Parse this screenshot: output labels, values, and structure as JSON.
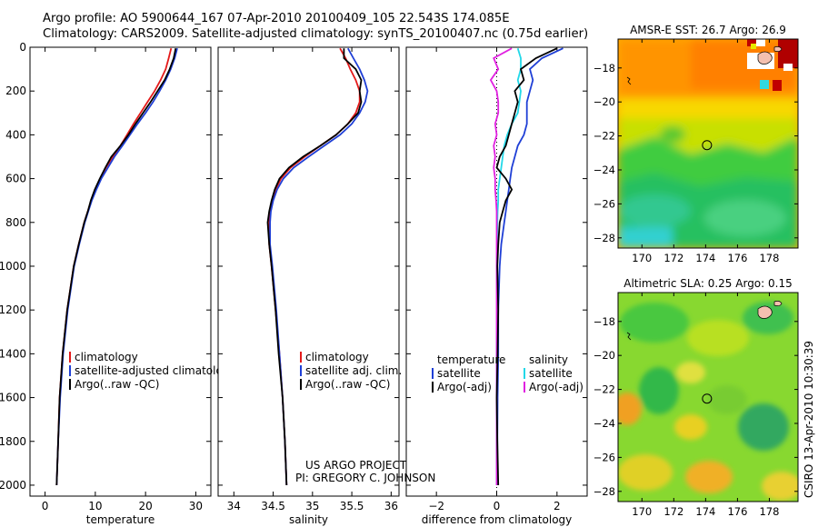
{
  "header": {
    "title_line1": "Argo profile: AO 5900644_167 07-Apr-2010 20100409_105 22.543S 174.085E",
    "title_line2": "Climatology: CARS2009. Satellite-adjusted climatology: synTS_20100407.nc (0.75d earlier)"
  },
  "credit": {
    "line1": "US ARGO PROJECT",
    "line2": "PI: GREGORY C. JOHNSON",
    "side": "CSIRO 13-Apr-2010 10:30:39"
  },
  "colors": {
    "climatology": "#e41a1a",
    "satellite": "#1f3fd6",
    "argo": "#000000",
    "sat_salinity": "#22d8e8",
    "argo_salinity": "#e020e0"
  },
  "chart_data": [
    {
      "type": "line",
      "id": "temperature",
      "xlabel": "temperature",
      "ylabel": "",
      "xlim": [
        -3,
        33
      ],
      "ylim": [
        2050,
        0
      ],
      "xticks": [
        0,
        10,
        20,
        30
      ],
      "yticks": [
        0,
        200,
        400,
        600,
        800,
        1000,
        1200,
        1400,
        1600,
        1800,
        2000
      ],
      "depth": [
        5,
        50,
        100,
        150,
        200,
        250,
        300,
        350,
        400,
        450,
        500,
        550,
        600,
        650,
        700,
        750,
        800,
        900,
        1000,
        1200,
        1400,
        1600,
        1800,
        2000
      ],
      "series": [
        {
          "name": "climatology",
          "legend": "climatology",
          "color": "#e41a1a",
          "values": [
            25.1,
            24.6,
            24.0,
            23.0,
            21.8,
            20.4,
            19.0,
            17.6,
            16.3,
            15.0,
            13.5,
            12.1,
            11.0,
            10.0,
            9.2,
            8.5,
            7.8,
            6.7,
            5.7,
            4.4,
            3.5,
            2.9,
            2.6,
            2.3
          ]
        },
        {
          "name": "satellite",
          "legend": "satellite-adjusted climatology",
          "color": "#1f3fd6",
          "values": [
            26.3,
            25.8,
            25.0,
            24.0,
            22.8,
            21.5,
            20.0,
            18.4,
            16.9,
            15.4,
            13.8,
            12.5,
            11.2,
            10.2,
            9.3,
            8.6,
            7.9,
            6.8,
            5.8,
            4.5,
            3.6,
            3.0,
            2.6,
            2.3
          ]
        },
        {
          "name": "argo",
          "legend": "Argo(..raw -QC)",
          "color": "#000000",
          "values": [
            26.0,
            25.6,
            24.8,
            23.8,
            22.4,
            21.0,
            19.5,
            18.0,
            16.6,
            15.0,
            13.2,
            12.0,
            10.9,
            9.9,
            9.1,
            8.5,
            7.8,
            6.7,
            5.7,
            4.4,
            3.5,
            2.9,
            2.6,
            2.3
          ]
        }
      ]
    },
    {
      "type": "line",
      "id": "salinity",
      "xlabel": "salinity",
      "ylabel": "",
      "xlim": [
        33.8,
        36.1
      ],
      "ylim": [
        2050,
        0
      ],
      "xticks": [
        34,
        34.5,
        35,
        35.5,
        36
      ],
      "xticklabels": [
        "34",
        "34.5",
        "35",
        "35.5",
        "36"
      ],
      "depth": [
        5,
        50,
        100,
        150,
        200,
        250,
        300,
        350,
        400,
        450,
        500,
        550,
        600,
        650,
        700,
        750,
        800,
        900,
        1000,
        1200,
        1400,
        1600,
        1800,
        2000
      ],
      "series": [
        {
          "name": "climatology",
          "legend": "climatology",
          "color": "#e41a1a",
          "values": [
            35.35,
            35.42,
            35.48,
            35.55,
            35.6,
            35.6,
            35.55,
            35.45,
            35.3,
            35.1,
            34.9,
            34.72,
            34.6,
            34.53,
            34.49,
            34.46,
            34.45,
            34.45,
            34.48,
            34.53,
            34.58,
            34.62,
            34.65,
            34.67
          ]
        },
        {
          "name": "satellite",
          "legend": "satellite adj. clim.",
          "color": "#1f3fd6",
          "values": [
            35.45,
            35.52,
            35.6,
            35.66,
            35.7,
            35.67,
            35.6,
            35.5,
            35.35,
            35.15,
            34.95,
            34.76,
            34.63,
            34.55,
            34.5,
            34.47,
            34.46,
            34.46,
            34.49,
            34.54,
            34.58,
            34.62,
            34.65,
            34.67
          ]
        },
        {
          "name": "argo",
          "legend": "Argo(..raw -QC)",
          "color": "#000000",
          "values": [
            35.4,
            35.4,
            35.55,
            35.62,
            35.6,
            35.62,
            35.58,
            35.45,
            35.3,
            35.1,
            34.88,
            34.7,
            34.58,
            34.52,
            34.48,
            34.45,
            34.43,
            34.45,
            34.48,
            34.53,
            34.57,
            34.62,
            34.65,
            34.67
          ]
        }
      ]
    },
    {
      "type": "line",
      "id": "difference",
      "xlabel": "difference from climatology",
      "ylabel": "",
      "xlim": [
        -3,
        3
      ],
      "ylim": [
        2050,
        0
      ],
      "xticks": [
        -2,
        0,
        2
      ],
      "depth": [
        5,
        50,
        100,
        150,
        200,
        250,
        300,
        350,
        400,
        450,
        500,
        550,
        600,
        650,
        700,
        750,
        800,
        900,
        1000,
        1200,
        1400,
        1600,
        1800,
        2000
      ],
      "legend_headers": {
        "temperature": "temperature",
        "salinity": "salinity"
      },
      "series": [
        {
          "name": "temp_satellite",
          "legend": "satellite",
          "group": "temperature",
          "color": "#1f3fd6",
          "values": [
            2.2,
            1.5,
            1.1,
            1.2,
            1.1,
            1.0,
            1.0,
            1.0,
            0.9,
            0.7,
            0.6,
            0.5,
            0.45,
            0.4,
            0.35,
            0.3,
            0.25,
            0.15,
            0.1,
            0.05,
            0.05,
            0.03,
            0.02,
            0.02
          ]
        },
        {
          "name": "temp_argo",
          "legend": "Argo(-adj)",
          "group": "temperature",
          "color": "#000000",
          "values": [
            2.0,
            1.3,
            0.8,
            0.9,
            0.6,
            0.7,
            0.6,
            0.5,
            0.4,
            0.3,
            0.1,
            0.0,
            0.3,
            0.5,
            0.3,
            0.2,
            0.1,
            0.05,
            0.02,
            0.05,
            0.03,
            0.0,
            0.02,
            0.05
          ]
        },
        {
          "name": "sal_satellite",
          "legend": "satellite",
          "group": "salinity",
          "color": "#22d8e8",
          "values": [
            0.7,
            0.8,
            0.8,
            0.7,
            0.8,
            0.75,
            0.7,
            0.5,
            0.35,
            0.25,
            0.2,
            0.15,
            0.1,
            0.05,
            0.05,
            0.03,
            0.02,
            0.02,
            0.01,
            0.01,
            0.0,
            0.0,
            0.0,
            0.0
          ]
        },
        {
          "name": "sal_argo",
          "legend": "Argo(-adj)",
          "group": "salinity",
          "color": "#e020e0",
          "values": [
            0.5,
            -0.1,
            0.05,
            -0.2,
            0.0,
            0.05,
            0.05,
            -0.05,
            0.0,
            -0.1,
            -0.05,
            -0.1,
            -0.05,
            -0.05,
            -0.02,
            0.0,
            0.0,
            0.0,
            0.0,
            0.0,
            0.0,
            0.0,
            0.0,
            0.0
          ]
        }
      ]
    },
    {
      "type": "heatmap",
      "id": "sst_map",
      "title": "AMSR-E SST: 26.7  Argo: 26.9",
      "xlim": [
        168.5,
        179.8
      ],
      "ylim": [
        -28.6,
        -16.3
      ],
      "xticks": [
        170,
        172,
        174,
        176,
        178
      ],
      "yticks": [
        -18,
        -20,
        -22,
        -24,
        -26,
        -28
      ],
      "marker": {
        "lon": 174.085,
        "lat": -22.543
      }
    },
    {
      "type": "heatmap",
      "id": "sla_map",
      "title": "Altimetric SLA: 0.25  Argo: 0.15",
      "xlim": [
        168.5,
        179.8
      ],
      "ylim": [
        -28.6,
        -16.3
      ],
      "xticks": [
        170,
        172,
        174,
        176,
        178
      ],
      "yticks": [
        -18,
        -20,
        -22,
        -24,
        -26,
        -28
      ],
      "marker": {
        "lon": 174.085,
        "lat": -22.543
      }
    }
  ]
}
